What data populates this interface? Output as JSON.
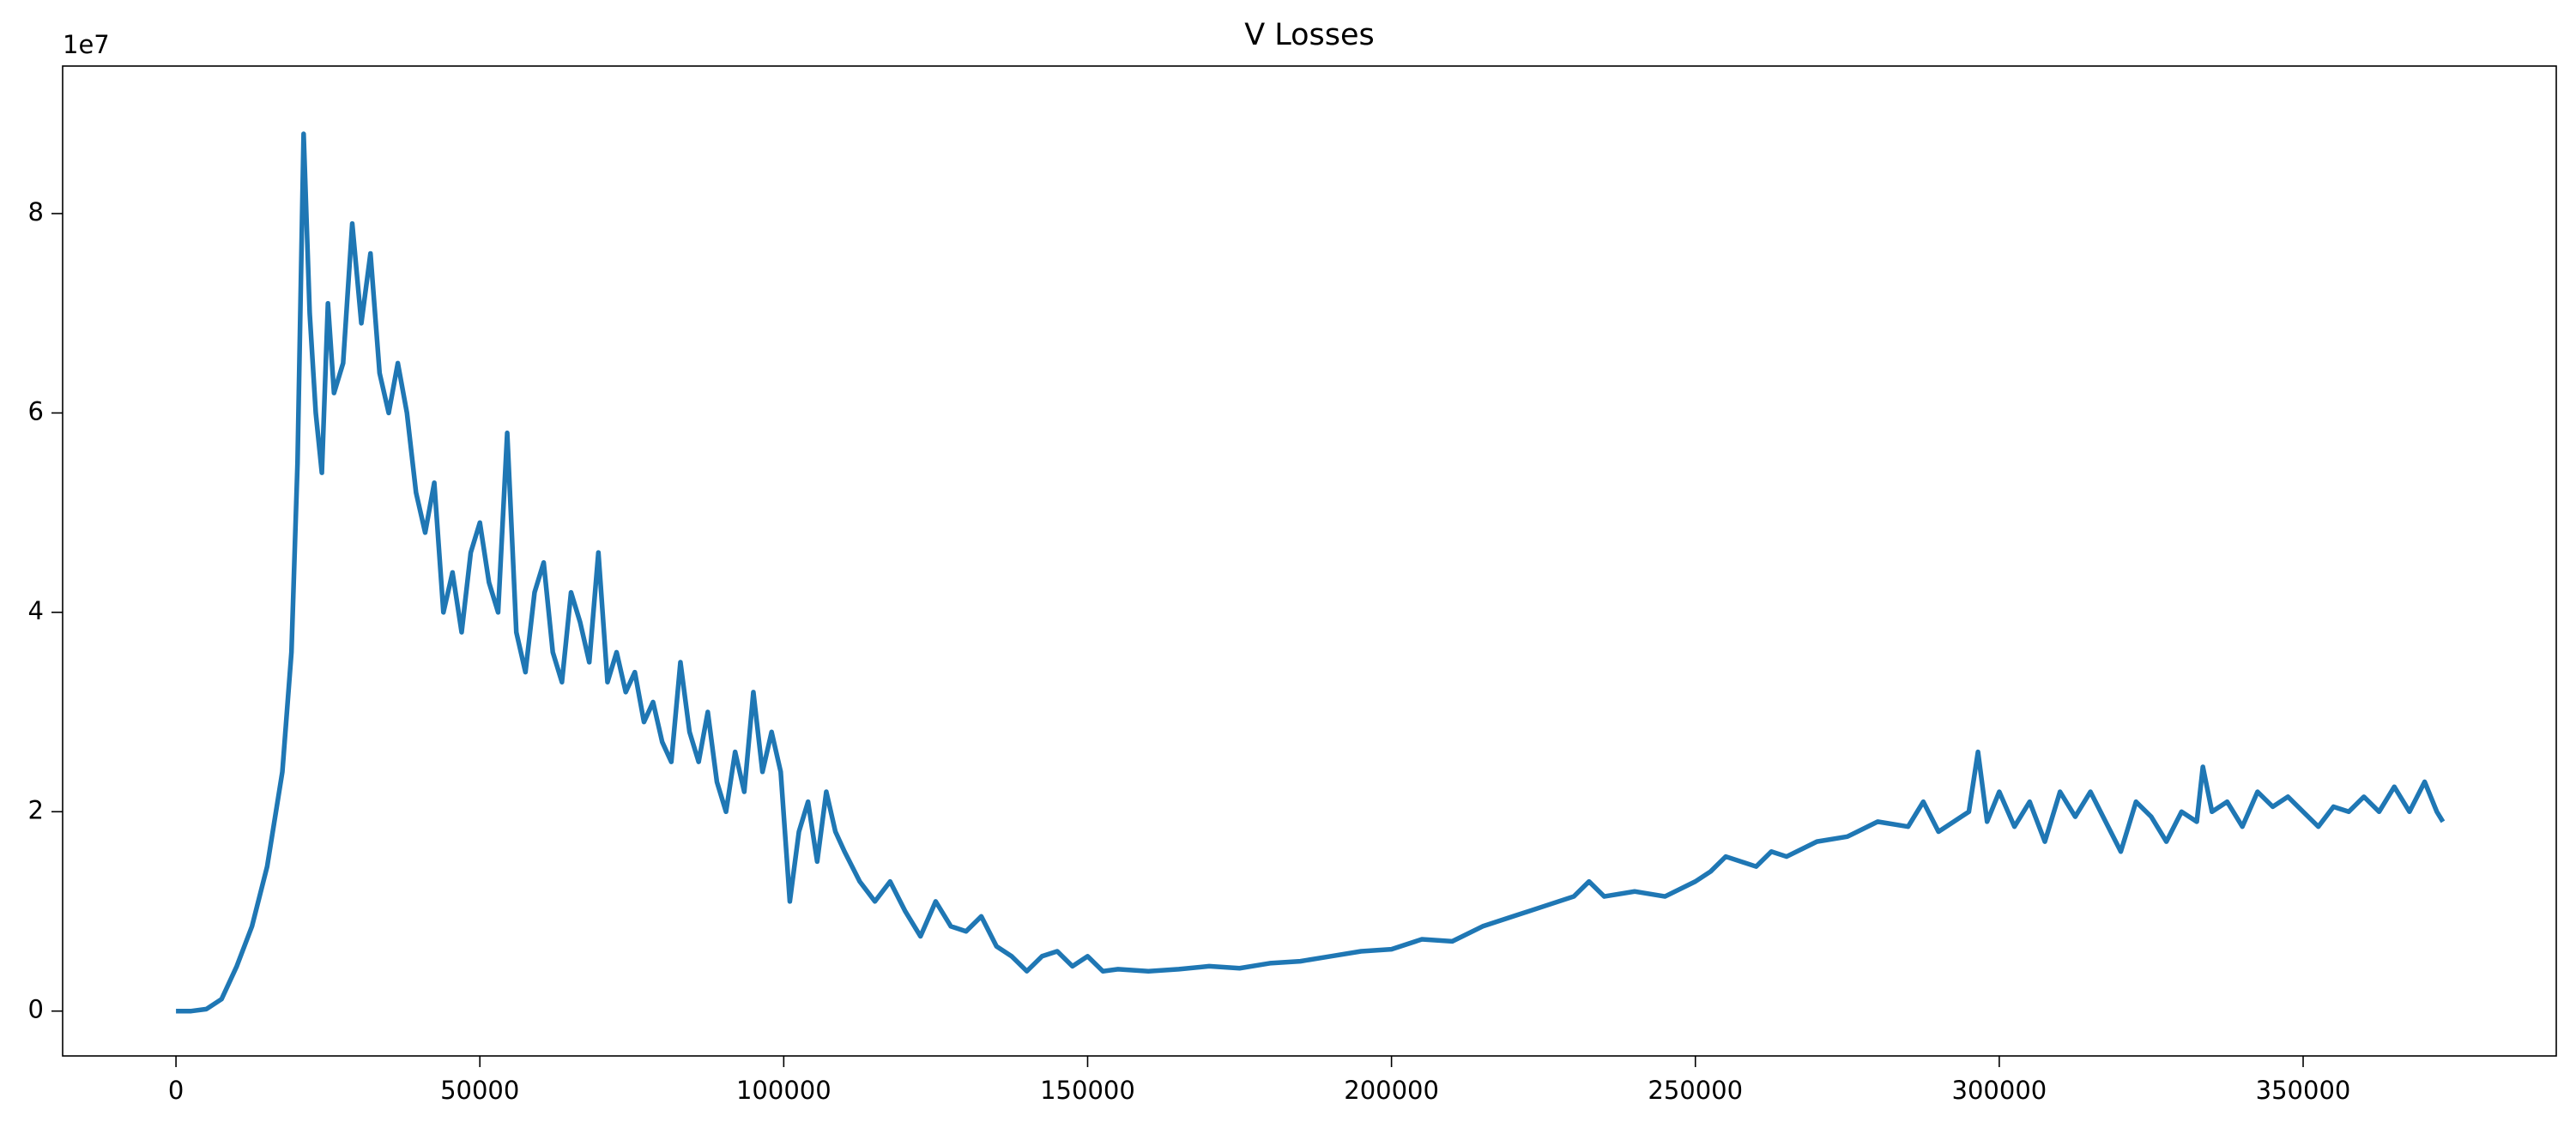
{
  "chart_data": {
    "type": "line",
    "title": "V Losses",
    "y_offset_label": "1e7",
    "color": "#1f77b4",
    "x": [
      0,
      2500,
      5000,
      7500,
      10000,
      12500,
      15000,
      17500,
      19000,
      20000,
      21000,
      22000,
      23000,
      24000,
      25000,
      26000,
      27500,
      29000,
      30500,
      32000,
      33500,
      35000,
      36500,
      38000,
      39500,
      41000,
      42500,
      44000,
      45500,
      47000,
      48500,
      50000,
      51500,
      53000,
      54500,
      56000,
      57500,
      59000,
      60500,
      62000,
      63500,
      65000,
      66500,
      68000,
      69500,
      71000,
      72500,
      74000,
      75500,
      77000,
      78500,
      80000,
      81500,
      83000,
      84500,
      86000,
      87500,
      89000,
      90500,
      92000,
      93500,
      95000,
      96500,
      98000,
      99500,
      101000,
      102500,
      104000,
      105500,
      107000,
      108500,
      110000,
      112500,
      115000,
      117500,
      120000,
      122500,
      125000,
      127500,
      130000,
      132500,
      135000,
      137500,
      140000,
      142500,
      145000,
      147500,
      150000,
      152500,
      155000,
      160000,
      165000,
      170000,
      175000,
      180000,
      185000,
      190000,
      195000,
      200000,
      205000,
      210000,
      215000,
      220000,
      225000,
      230000,
      232500,
      235000,
      240000,
      245000,
      250000,
      252500,
      255000,
      260000,
      262500,
      265000,
      270000,
      275000,
      280000,
      285000,
      287500,
      290000,
      292500,
      295000,
      296500,
      298000,
      300000,
      302500,
      305000,
      307500,
      310000,
      312500,
      315000,
      317500,
      320000,
      322500,
      325000,
      327500,
      330000,
      332500,
      333500,
      335000,
      337500,
      340000,
      342500,
      345000,
      347500,
      350000,
      352500,
      355000,
      357500,
      360000,
      362500,
      365000,
      367500,
      370000,
      372000,
      373000
    ],
    "values": [
      0,
      0,
      0.02,
      0.12,
      0.45,
      0.85,
      1.45,
      2.4,
      3.6,
      5.5,
      8.8,
      7.0,
      6.0,
      5.4,
      7.1,
      6.2,
      6.5,
      7.9,
      6.9,
      7.6,
      6.4,
      6.0,
      6.5,
      6.0,
      5.2,
      4.8,
      5.3,
      4.0,
      4.4,
      3.8,
      4.6,
      4.9,
      4.3,
      4.0,
      5.8,
      3.8,
      3.4,
      4.2,
      4.5,
      3.6,
      3.3,
      4.2,
      3.9,
      3.5,
      4.6,
      3.3,
      3.6,
      3.2,
      3.4,
      2.9,
      3.1,
      2.7,
      2.5,
      3.5,
      2.8,
      2.5,
      3.0,
      2.3,
      2.0,
      2.6,
      2.2,
      3.2,
      2.4,
      2.8,
      2.4,
      1.1,
      1.8,
      2.1,
      1.5,
      2.2,
      1.8,
      1.6,
      1.3,
      1.1,
      1.3,
      1.0,
      0.75,
      1.1,
      0.85,
      0.8,
      0.95,
      0.65,
      0.55,
      0.4,
      0.55,
      0.6,
      0.45,
      0.55,
      0.4,
      0.42,
      0.4,
      0.42,
      0.45,
      0.43,
      0.48,
      0.5,
      0.55,
      0.6,
      0.62,
      0.72,
      0.7,
      0.85,
      0.95,
      1.05,
      1.15,
      1.3,
      1.15,
      1.2,
      1.15,
      1.3,
      1.4,
      1.55,
      1.45,
      1.6,
      1.55,
      1.7,
      1.75,
      1.9,
      1.85,
      2.1,
      1.8,
      1.9,
      2.0,
      2.6,
      1.9,
      2.2,
      1.85,
      2.1,
      1.7,
      2.2,
      1.95,
      2.2,
      1.9,
      1.6,
      2.1,
      1.95,
      1.7,
      2.0,
      1.9,
      2.45,
      2.0,
      2.1,
      1.85,
      2.2,
      2.05,
      2.15,
      2.0,
      1.85,
      2.05,
      2.0,
      2.15,
      2.0,
      2.25,
      2.0,
      2.3,
      2.0,
      1.9
    ],
    "xlim": [
      -18650,
      391650
    ],
    "xticks": [
      0,
      50000,
      100000,
      150000,
      200000,
      250000,
      300000,
      350000
    ],
    "ylim": [
      -0.45,
      9.48
    ],
    "yticks": [
      0,
      2,
      4,
      6,
      8
    ]
  }
}
